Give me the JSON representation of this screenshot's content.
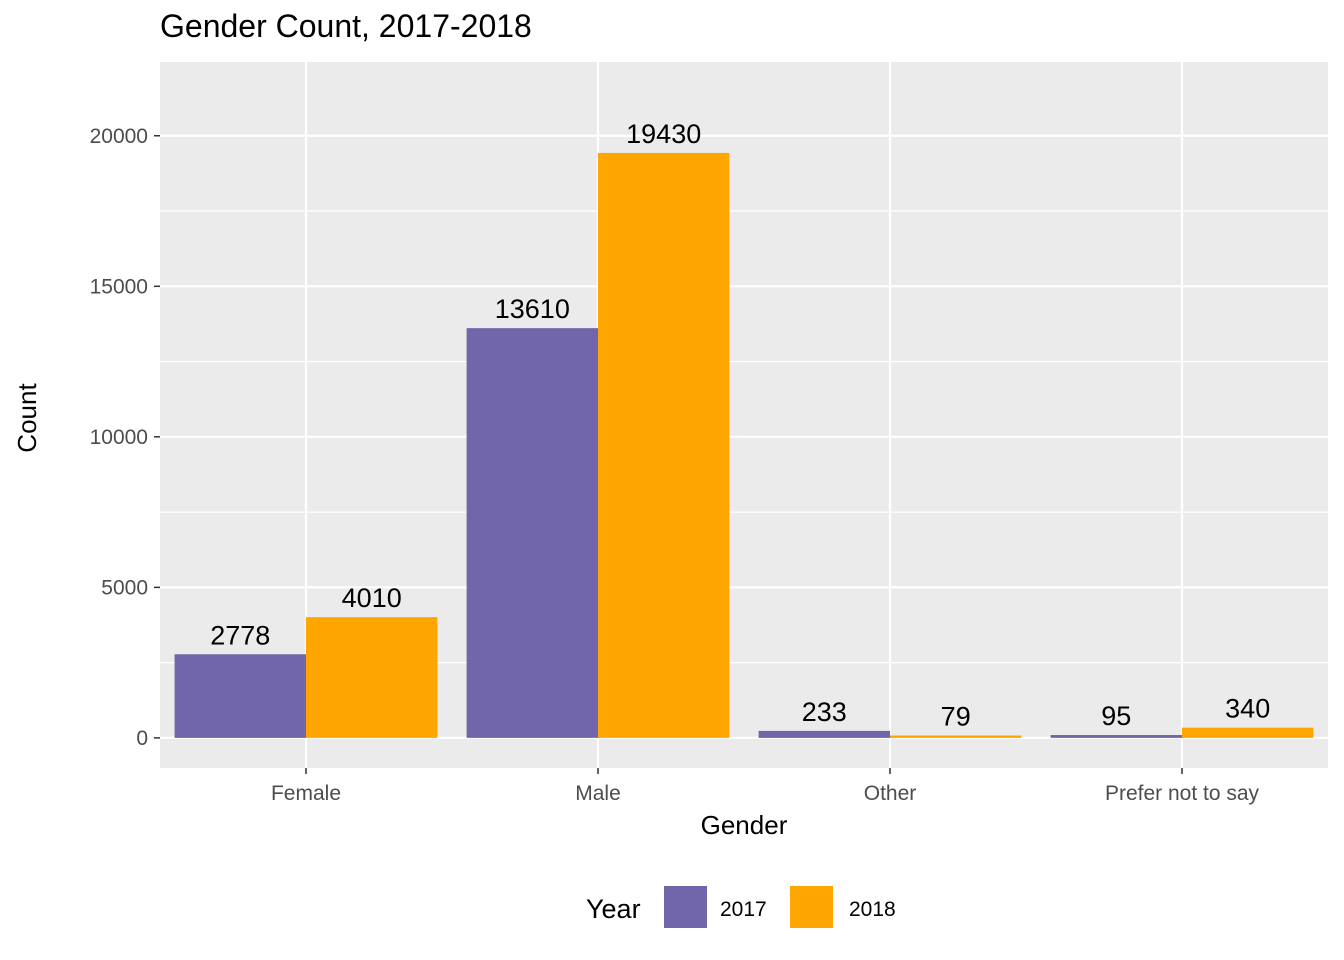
{
  "chart_data": {
    "type": "bar",
    "title": "Gender Count, 2017-2018",
    "xlabel": "Gender",
    "ylabel": "Count",
    "categories": [
      "Female",
      "Male",
      "Other",
      "Prefer not to say"
    ],
    "series": [
      {
        "name": "2017",
        "color": "#7066A9",
        "values": [
          2778,
          13610,
          233,
          95
        ]
      },
      {
        "name": "2018",
        "color": "#FFA500",
        "values": [
          4010,
          19430,
          79,
          340
        ]
      }
    ],
    "ylim": [
      -1000,
      22450
    ],
    "yticks": [
      0,
      5000,
      10000,
      15000,
      20000
    ],
    "grid": true,
    "legend": {
      "title": "Year",
      "position": "bottom"
    },
    "panel_background": "#EBEBEB",
    "grid_color": "#FFFFFF"
  }
}
